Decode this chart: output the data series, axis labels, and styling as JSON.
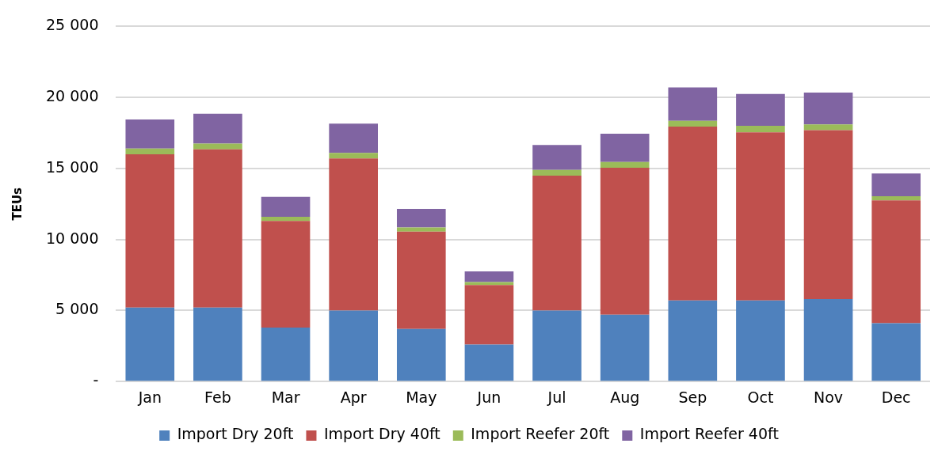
{
  "chart_data": {
    "type": "bar",
    "stacked": true,
    "ylabel": "TEUs",
    "categories": [
      "Jan",
      "Feb",
      "Mar",
      "Apr",
      "May",
      "Jun",
      "Jul",
      "Aug",
      "Sep",
      "Oct",
      "Nov",
      "Dec"
    ],
    "series": [
      {
        "name": "Import Dry 20ft",
        "color": "#4f81bd",
        "values": [
          5200,
          5200,
          3800,
          5000,
          3700,
          2600,
          5000,
          4700,
          5700,
          5700,
          5800,
          4100
        ]
      },
      {
        "name": "Import Dry 40ft",
        "color": "#c0504d",
        "values": [
          10800,
          11150,
          7500,
          10700,
          6850,
          4200,
          9500,
          10350,
          12250,
          11850,
          11900,
          8650
        ]
      },
      {
        "name": "Import Reefer 20ft",
        "color": "#9bbb59",
        "values": [
          400,
          400,
          300,
          400,
          300,
          200,
          400,
          400,
          400,
          450,
          400,
          300
        ]
      },
      {
        "name": "Import Reefer 40ft",
        "color": "#8064a2",
        "values": [
          2050,
          2100,
          1400,
          2050,
          1300,
          750,
          1750,
          2000,
          2350,
          2250,
          2250,
          1600
        ]
      }
    ],
    "ylim": [
      0,
      25000
    ],
    "yticks": [
      {
        "value": 0,
        "label": "-"
      },
      {
        "value": 5000,
        "label": "5 000"
      },
      {
        "value": 10000,
        "label": "10 000"
      },
      {
        "value": 15000,
        "label": "15 000"
      },
      {
        "value": 20000,
        "label": "20 000"
      },
      {
        "value": 25000,
        "label": "25 000"
      }
    ],
    "grid": "y",
    "legend": "bottom"
  }
}
